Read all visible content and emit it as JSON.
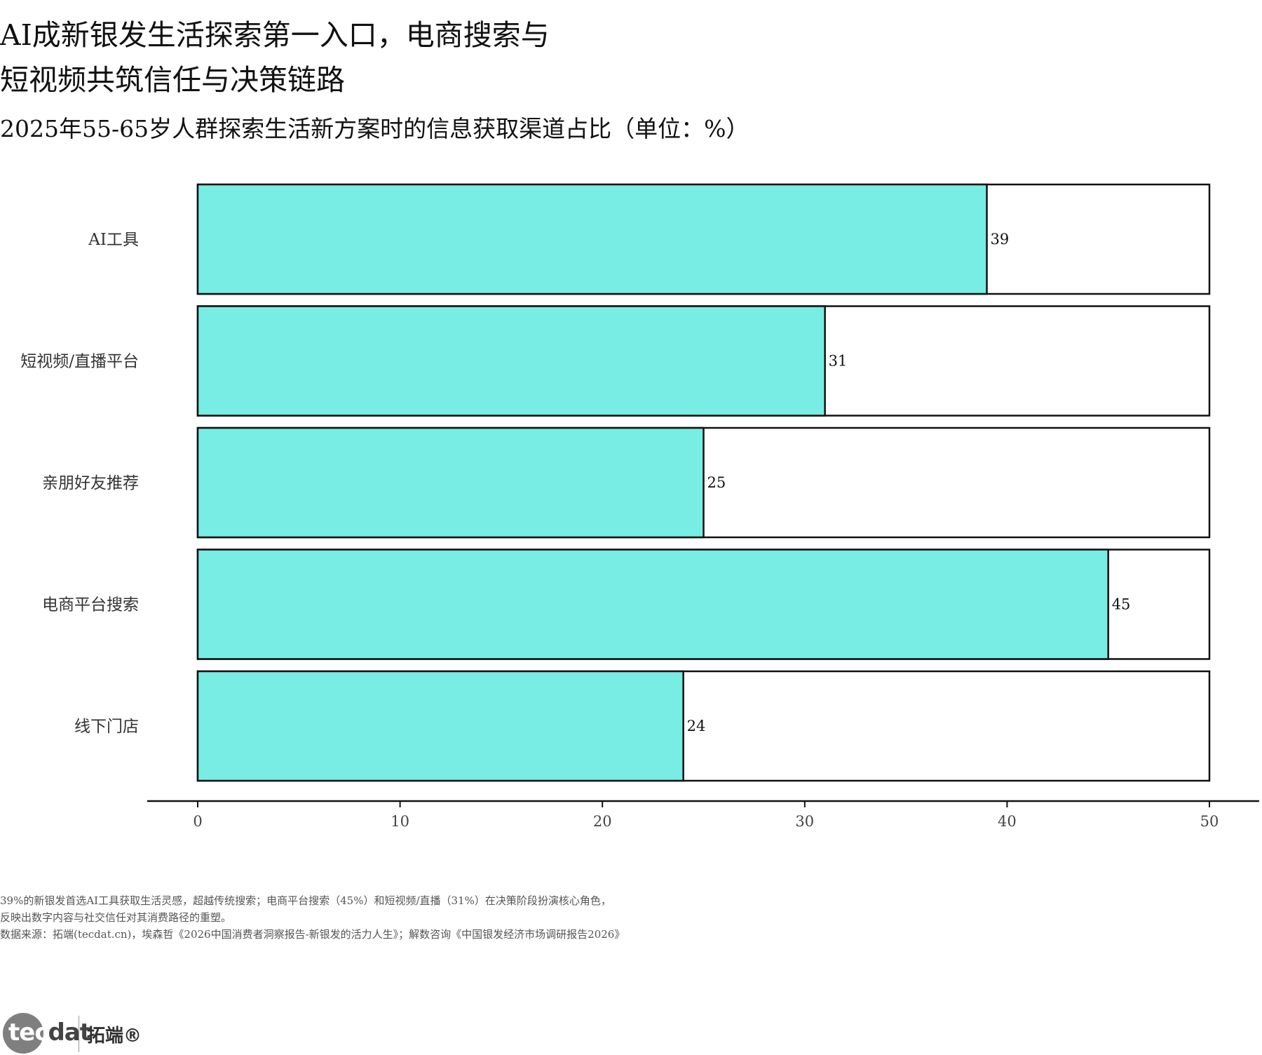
{
  "header": {
    "title_line1": "AI成新银发生活探索第一入口，电商搜索与",
    "title_line2": "短视频共筑信任与决策链路",
    "subtitle": "2025年55-65岁人群探索生活新方案时的信息获取渠道占比（单位：%）"
  },
  "chart_data": {
    "type": "bar",
    "orientation": "horizontal",
    "title": "",
    "xlabel": "",
    "ylabel": "",
    "categories": [
      "AI工具",
      "短视频/直播平台",
      "亲朋好友推荐",
      "电商平台搜索",
      "线下门店"
    ],
    "values": [
      39,
      31,
      25,
      45,
      24
    ],
    "value_labels": [
      "39",
      "31",
      "25",
      "45",
      "24"
    ],
    "background_max": 50,
    "xlim": [
      0,
      50
    ],
    "xticks": [
      0,
      10,
      20,
      30,
      40,
      50
    ],
    "xtick_labels": [
      "0",
      "10",
      "20",
      "30",
      "40",
      "50"
    ],
    "grid": false,
    "legend": "none",
    "colors": {
      "bar": "#77EDE3",
      "background_bar": "#FFFFFF",
      "edge": "#111111"
    }
  },
  "footer": {
    "note_line1": "39%的新银发首选AI工具获取生活灵感，超越传统搜索；电商平台搜索（45%）和短视频/直播（31%）在决策阶段扮演核心角色，",
    "note_line2": "反映出数字内容与社交信任对其消费路径的重塑。",
    "source": "数据来源：拓端(tecdat.cn)，埃森哲《2026中国消费者洞察报告-新银发的活力人生》；解数咨询《中国银发经济市场调研报告2026》"
  },
  "logo": {
    "text_dark": "tec",
    "text_light": "dat",
    "brand_cn": "拓端®"
  }
}
